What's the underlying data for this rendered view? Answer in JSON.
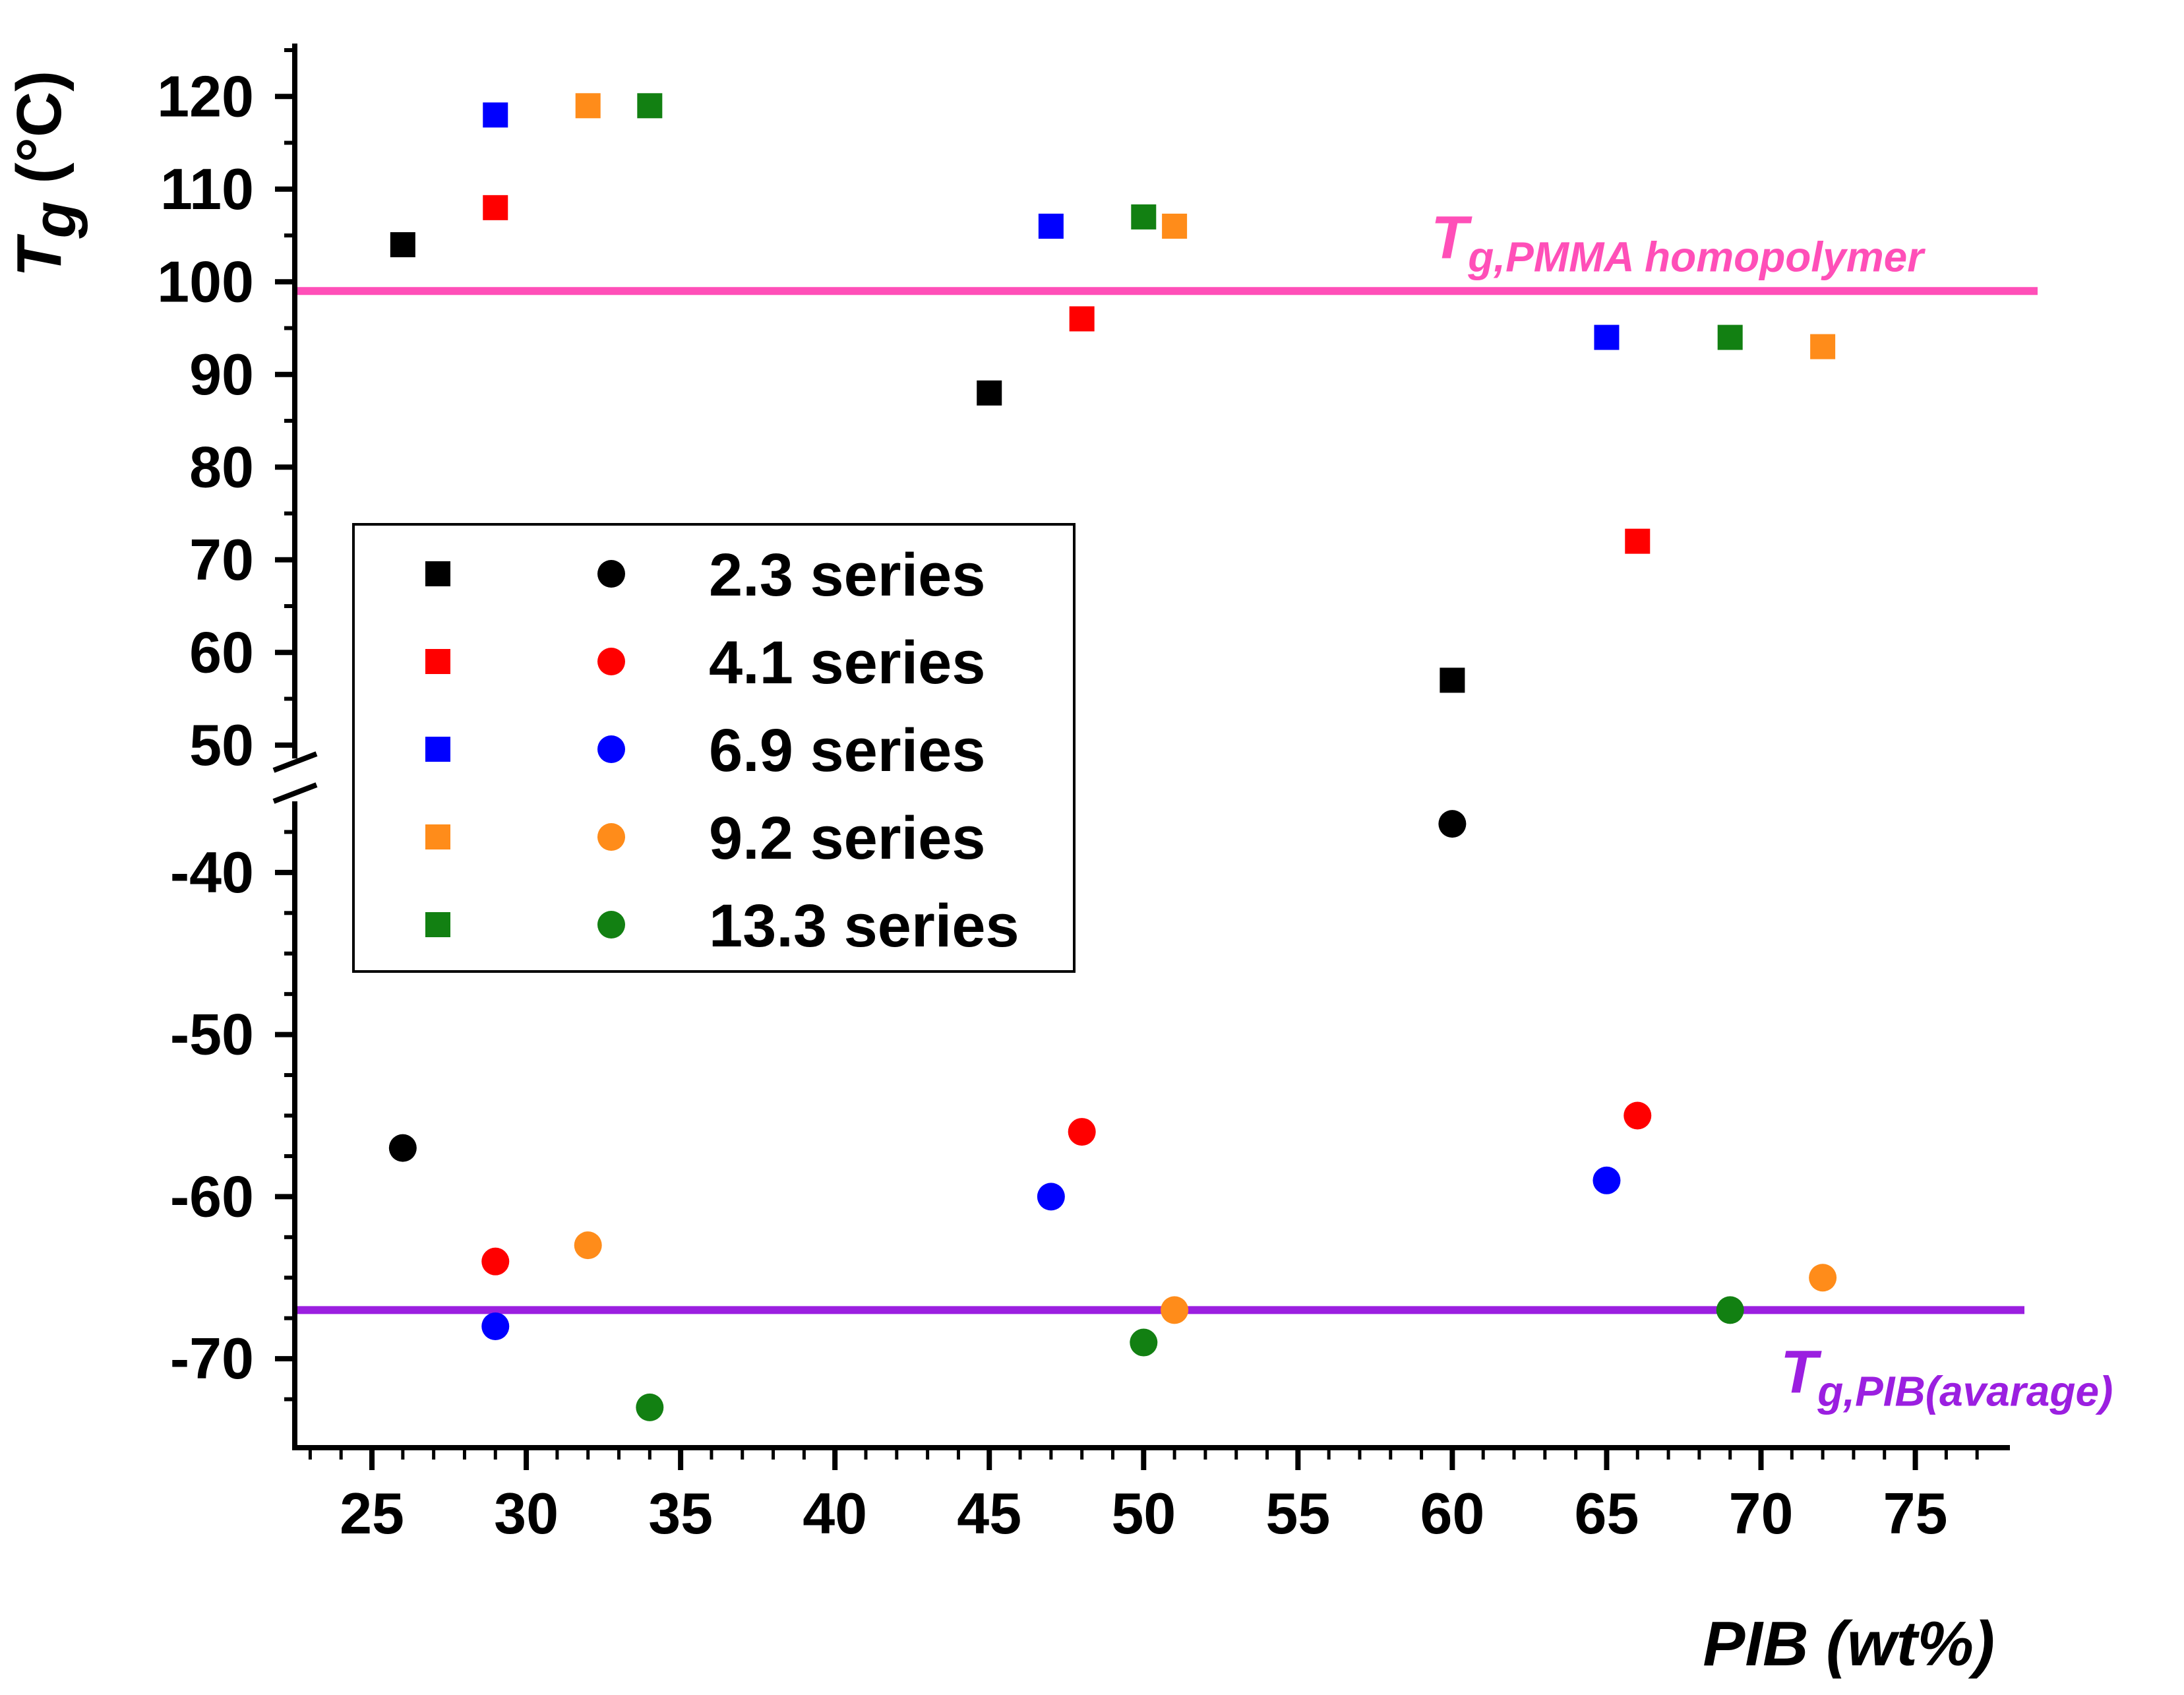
{
  "chart_data": {
    "type": "scatter",
    "xlabel": "PIB (wt%)",
    "ylabel": {
      "main": "T",
      "sub": "g",
      "unit": " (°C)"
    },
    "xlim": [
      22.5,
      78
    ],
    "x_ticks": [
      25,
      30,
      35,
      40,
      45,
      50,
      55,
      60,
      65,
      70,
      75
    ],
    "y_axis_break": true,
    "y_upper": {
      "range": [
        45,
        125
      ],
      "ticks": [
        50,
        60,
        70,
        80,
        90,
        100,
        110,
        120
      ]
    },
    "y_lower": {
      "range": [
        -75,
        -35
      ],
      "ticks": [
        -40,
        -50,
        -60,
        -70
      ]
    },
    "legend_position": "center-left",
    "series": [
      {
        "name": "2.3 series",
        "color": "#000000",
        "squares": [
          [
            26,
            104
          ],
          [
            45,
            88
          ],
          [
            60,
            57
          ]
        ],
        "circles": [
          [
            26,
            -57
          ],
          [
            60,
            -37
          ]
        ]
      },
      {
        "name": "4.1 series",
        "color": "#ff0000",
        "squares": [
          [
            29,
            108
          ],
          [
            48,
            96
          ],
          [
            66,
            72
          ]
        ],
        "circles": [
          [
            29,
            -64
          ],
          [
            48,
            -56
          ],
          [
            66,
            -55
          ]
        ]
      },
      {
        "name": "6.9 series",
        "color": "#0000ff",
        "squares": [
          [
            29,
            118
          ],
          [
            47,
            106
          ],
          [
            65,
            94
          ]
        ],
        "circles": [
          [
            29,
            -68
          ],
          [
            47,
            -60
          ],
          [
            65,
            -59
          ]
        ]
      },
      {
        "name": "9.2 series",
        "color": "#ff8c1a",
        "squares": [
          [
            32,
            119
          ],
          [
            51,
            106
          ],
          [
            72,
            93
          ]
        ],
        "circles": [
          [
            32,
            -63
          ],
          [
            51,
            -67
          ],
          [
            72,
            -65
          ]
        ]
      },
      {
        "name": "13.3 series",
        "color": "#128012",
        "squares": [
          [
            34,
            119
          ],
          [
            50,
            107
          ],
          [
            69,
            94
          ]
        ],
        "circles": [
          [
            34,
            -73
          ],
          [
            50,
            -69
          ],
          [
            69,
            -67
          ]
        ]
      }
    ],
    "reference_lines": [
      {
        "name": "PMMA",
        "value": 99,
        "panel": "upper",
        "color": "#ff4fb8",
        "label_main": "T",
        "label_sub": "g,PMMA homopolymer"
      },
      {
        "name": "PIB",
        "value": -67,
        "panel": "lower",
        "color": "#9b1fe0",
        "label_main": "T",
        "label_sub": "g,PIB(avarage)"
      }
    ]
  }
}
